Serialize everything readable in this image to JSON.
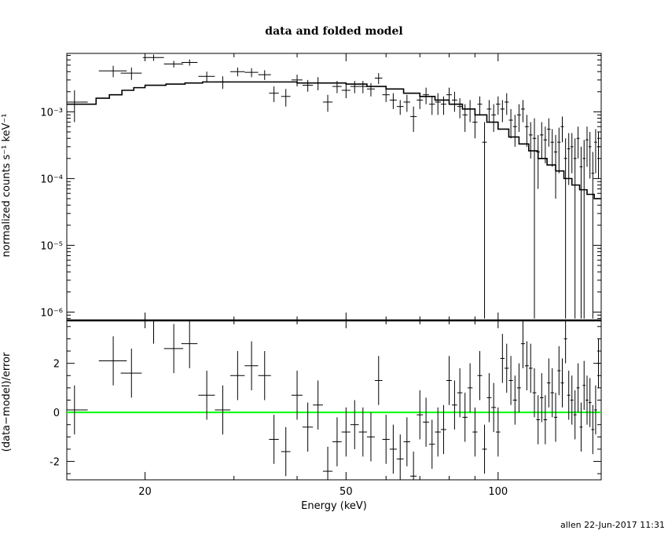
{
  "chart_data": [
    {
      "type": "scatter",
      "title": "data and folded model",
      "xlabel": "",
      "ylabel": "normalized counts s⁻¹ keV⁻¹",
      "yscale": "log",
      "xscale": "log",
      "xlim": [
        14.0,
        160.0
      ],
      "ylim": [
        7.5e-07,
        0.0075
      ],
      "y_ticks": [
        {
          "value": 1e-06,
          "label": "10⁻⁶"
        },
        {
          "value": 1e-05,
          "label": "10⁻⁵"
        },
        {
          "value": 0.0001,
          "label": "10⁻⁴"
        },
        {
          "value": 0.001,
          "label": "10⁻³"
        }
      ],
      "model": {
        "x": [
          14,
          15,
          16,
          17,
          18,
          19,
          20,
          22,
          24,
          26,
          28,
          30,
          33,
          36,
          40,
          45,
          50,
          55,
          60,
          65,
          70,
          75,
          80,
          85,
          90,
          95,
          100,
          105,
          110,
          115,
          120,
          125,
          130,
          135,
          140,
          145,
          150,
          155,
          160
        ],
        "y": [
          0.0013,
          0.0013,
          0.0016,
          0.0018,
          0.0021,
          0.0023,
          0.0025,
          0.0026,
          0.0027,
          0.0028,
          0.0028,
          0.0028,
          0.0028,
          0.0028,
          0.0027,
          0.0027,
          0.0026,
          0.0024,
          0.0022,
          0.0019,
          0.0017,
          0.0015,
          0.0013,
          0.0011,
          0.0009,
          0.0007,
          0.00055,
          0.00042,
          0.00033,
          0.00026,
          0.0002,
          0.00016,
          0.00013,
          0.0001,
          8e-05,
          6.8e-05,
          5.8e-05,
          5e-05,
          5e-05
        ]
      },
      "data": {
        "x": [
          14.5,
          17.3,
          18.8,
          20.8,
          22.8,
          24.5,
          26.5,
          28.5,
          30.5,
          32.5,
          34.5,
          36,
          38,
          40,
          42,
          44,
          46,
          48,
          50,
          52,
          54,
          56,
          58,
          60,
          62,
          64,
          66,
          68,
          70,
          72,
          74,
          76,
          78,
          80,
          82,
          84,
          86,
          88,
          90,
          92,
          94,
          96,
          98,
          100,
          102,
          104,
          106,
          108,
          110,
          112,
          114,
          116,
          118,
          120,
          122,
          124,
          126,
          128,
          130,
          132,
          134,
          136,
          138,
          140,
          142,
          144,
          146,
          148,
          150,
          152,
          154,
          156,
          158
        ],
        "xerr": [
          0.9,
          1.1,
          0.9,
          1.0,
          1.0,
          0.9,
          1.0,
          1.0,
          1.0,
          1.0,
          1.0,
          0.8,
          0.8,
          1.0,
          1.0,
          1.0,
          1.0,
          1.0,
          1.0,
          1.0,
          1.0,
          1.0,
          1.0,
          1.0,
          1.0,
          1.0,
          1.0,
          1.0,
          1.0,
          1.0,
          1.0,
          1.0,
          1.0,
          1.0,
          1.0,
          1.0,
          1.0,
          1.0,
          1.0,
          1.0,
          1.0,
          1.0,
          1.0,
          1.0,
          1.0,
          1.0,
          1.0,
          1.0,
          1.0,
          1.0,
          1.0,
          1.0,
          1.0,
          1.0,
          1.0,
          1.0,
          1.0,
          1.0,
          1.0,
          1.0,
          1.0,
          1.0,
          1.0,
          1.0,
          1.0,
          1.0,
          1.0,
          1.0,
          1.0,
          1.0,
          1.0,
          1.0,
          1.0
        ],
        "y": [
          0.0014,
          0.0041,
          0.0038,
          0.0065,
          0.0052,
          0.0055,
          0.0034,
          0.0028,
          0.004,
          0.0039,
          0.0036,
          0.0019,
          0.0017,
          0.003,
          0.0025,
          0.0027,
          0.0014,
          0.0024,
          0.0021,
          0.0024,
          0.0024,
          0.0022,
          0.0032,
          0.0018,
          0.0015,
          0.0012,
          0.0014,
          0.00085,
          0.0015,
          0.0018,
          0.0013,
          0.0014,
          0.0013,
          0.0018,
          0.0015,
          0.0012,
          0.0009,
          0.0011,
          0.0007,
          0.0013,
          0.00035,
          0.0011,
          0.0009,
          0.0013,
          0.0011,
          0.0014,
          0.00075,
          0.0006,
          0.0009,
          0.0011,
          0.0006,
          0.00045,
          0.0004,
          0.00025,
          0.00045,
          0.00038,
          0.00055,
          0.00035,
          0.00025,
          0.00035,
          0.0006,
          0.0002,
          0.00028,
          0.0003,
          0.0002,
          0.0004,
          0.00015,
          0.0002,
          0.00038,
          0.0003,
          0.00012,
          0.00035,
          0.0003
        ],
        "ylo": [
          0.0007,
          0.0033,
          0.003,
          0.0058,
          0.0046,
          0.0049,
          0.0028,
          0.0022,
          0.0034,
          0.0033,
          0.003,
          0.0014,
          0.0012,
          0.0024,
          0.002,
          0.0021,
          0.001,
          0.0019,
          0.0016,
          0.0019,
          0.0019,
          0.0017,
          0.0026,
          0.0014,
          0.0011,
          0.0009,
          0.001,
          0.0005,
          0.0011,
          0.0013,
          0.0009,
          0.0009,
          0.0009,
          0.0013,
          0.001,
          0.0008,
          0.0005,
          0.0007,
          0.0004,
          0.0009,
          8e-07,
          0.0007,
          0.0005,
          0.0009,
          0.0007,
          0.0009,
          0.0004,
          0.0003,
          0.0005,
          0.0007,
          0.0003,
          0.0002,
          8e-07,
          7e-05,
          0.0002,
          0.00017,
          0.0003,
          0.00015,
          5e-05,
          0.00012,
          0.00035,
          8e-07,
          8e-05,
          0.00012,
          8e-07,
          0.0002,
          8e-07,
          8e-07,
          0.00015,
          0.0001,
          8e-07,
          0.00012,
          0.0001
        ],
        "yhi": [
          0.0021,
          0.0049,
          0.0046,
          0.0072,
          0.0058,
          0.0061,
          0.004,
          0.0034,
          0.0046,
          0.0045,
          0.0042,
          0.0024,
          0.0022,
          0.0036,
          0.003,
          0.0033,
          0.0018,
          0.0029,
          0.0026,
          0.0029,
          0.0029,
          0.0027,
          0.0038,
          0.0022,
          0.0019,
          0.0015,
          0.0018,
          0.0012,
          0.0019,
          0.0023,
          0.0017,
          0.0019,
          0.0017,
          0.0023,
          0.002,
          0.0016,
          0.0013,
          0.0015,
          0.001,
          0.0017,
          0.0007,
          0.0015,
          0.0013,
          0.0017,
          0.0015,
          0.0019,
          0.0011,
          0.0009,
          0.0013,
          0.0015,
          0.0009,
          0.0007,
          0.0008,
          0.00045,
          0.0007,
          0.0006,
          0.0008,
          0.00055,
          0.00045,
          0.00058,
          0.00085,
          0.0004,
          0.00048,
          0.00048,
          0.0004,
          0.0006,
          0.0003,
          0.00038,
          0.0006,
          0.0005,
          0.00025,
          0.00055,
          0.0005
        ]
      }
    },
    {
      "type": "scatter",
      "title": "",
      "xlabel": "Energy (keV)",
      "ylabel": "(data−model)/error",
      "xscale": "log",
      "xlim": [
        14.0,
        160.0
      ],
      "ylim": [
        -2.75,
        3.75
      ],
      "x_ticks": [
        20,
        50,
        100
      ],
      "y_ticks": [
        -2,
        0,
        2
      ],
      "reference_line": {
        "y": 0,
        "color": "#00ff00"
      },
      "data": {
        "x": [
          14.5,
          17.3,
          18.8,
          20.8,
          22.8,
          24.5,
          26.5,
          28.5,
          30.5,
          32.5,
          34.5,
          36,
          38,
          40,
          42,
          44,
          46,
          48,
          50,
          52,
          54,
          56,
          58,
          60,
          62,
          64,
          66,
          68,
          70,
          72,
          74,
          76,
          78,
          80,
          82,
          84,
          86,
          88,
          90,
          92,
          94,
          96,
          98,
          100,
          102,
          104,
          106,
          108,
          110,
          112,
          114,
          116,
          118,
          120,
          122,
          124,
          126,
          128,
          130,
          132,
          134,
          136,
          138,
          140,
          142,
          144,
          146,
          148,
          150,
          152,
          154,
          156,
          158
        ],
        "xerr": [
          0.9,
          1.1,
          0.9,
          1.0,
          1.0,
          0.9,
          1.0,
          1.0,
          1.0,
          1.0,
          1.0,
          0.8,
          0.8,
          1.0,
          1.0,
          1.0,
          1.0,
          1.0,
          1.0,
          1.0,
          1.0,
          1.0,
          1.0,
          1.0,
          1.0,
          1.0,
          1.0,
          1.0,
          1.0,
          1.0,
          1.0,
          1.0,
          1.0,
          1.0,
          1.0,
          1.0,
          1.0,
          1.0,
          1.0,
          1.0,
          1.0,
          1.0,
          1.0,
          1.0,
          1.0,
          1.0,
          1.0,
          1.0,
          1.0,
          1.0,
          1.0,
          1.0,
          1.0,
          1.0,
          1.0,
          1.0,
          1.0,
          1.0,
          1.0,
          1.0,
          1.0,
          1.0,
          1.0,
          1.0,
          1.0,
          1.0,
          1.0,
          1.0,
          1.0,
          1.0,
          1.0,
          1.0,
          1.0
        ],
        "y": [
          0.1,
          2.1,
          1.6,
          3.8,
          2.6,
          2.8,
          0.7,
          0.1,
          1.5,
          1.9,
          1.5,
          -1.1,
          -1.6,
          0.7,
          -0.6,
          0.3,
          -2.4,
          -1.2,
          -0.8,
          -0.5,
          -0.8,
          -1.0,
          1.3,
          -1.1,
          -1.5,
          -1.9,
          -1.2,
          -2.6,
          -0.1,
          -0.4,
          -1.3,
          -0.8,
          -0.7,
          1.3,
          0.3,
          0.8,
          -0.2,
          1.0,
          -0.8,
          1.5,
          -1.5,
          0.6,
          0.2,
          -0.8,
          2.2,
          1.8,
          1.3,
          0.5,
          1.0,
          2.8,
          1.9,
          1.8,
          0.8,
          -0.3,
          0.6,
          -0.3,
          1.2,
          0.8,
          -0.2,
          1.7,
          1.2,
          3.0,
          0.7,
          0.5,
          -0.1,
          1.0,
          -0.6,
          1.1,
          0.5,
          0.4,
          -0.7,
          0.1,
          2.0
        ],
        "err": [
          1.0,
          1.0,
          1.0,
          1.0,
          1.0,
          1.0,
          1.0,
          1.0,
          1.0,
          1.0,
          1.0,
          1.0,
          1.0,
          1.0,
          1.0,
          1.0,
          1.0,
          1.0,
          1.0,
          1.0,
          1.0,
          1.0,
          1.0,
          1.0,
          1.0,
          1.0,
          1.0,
          1.0,
          1.0,
          1.0,
          1.0,
          1.0,
          1.0,
          1.0,
          1.0,
          1.0,
          1.0,
          1.0,
          1.0,
          1.0,
          1.0,
          1.0,
          1.0,
          1.0,
          1.0,
          1.0,
          1.0,
          1.0,
          1.0,
          1.0,
          1.0,
          1.0,
          1.0,
          1.0,
          1.0,
          1.0,
          1.0,
          1.0,
          1.0,
          1.0,
          1.0,
          1.0,
          1.0,
          1.0,
          1.0,
          1.0,
          1.0,
          1.0,
          1.0,
          1.0,
          1.0,
          1.0,
          1.0
        ]
      }
    }
  ],
  "footer": {
    "stamp": "allen 22-Jun-2017 11:31"
  }
}
